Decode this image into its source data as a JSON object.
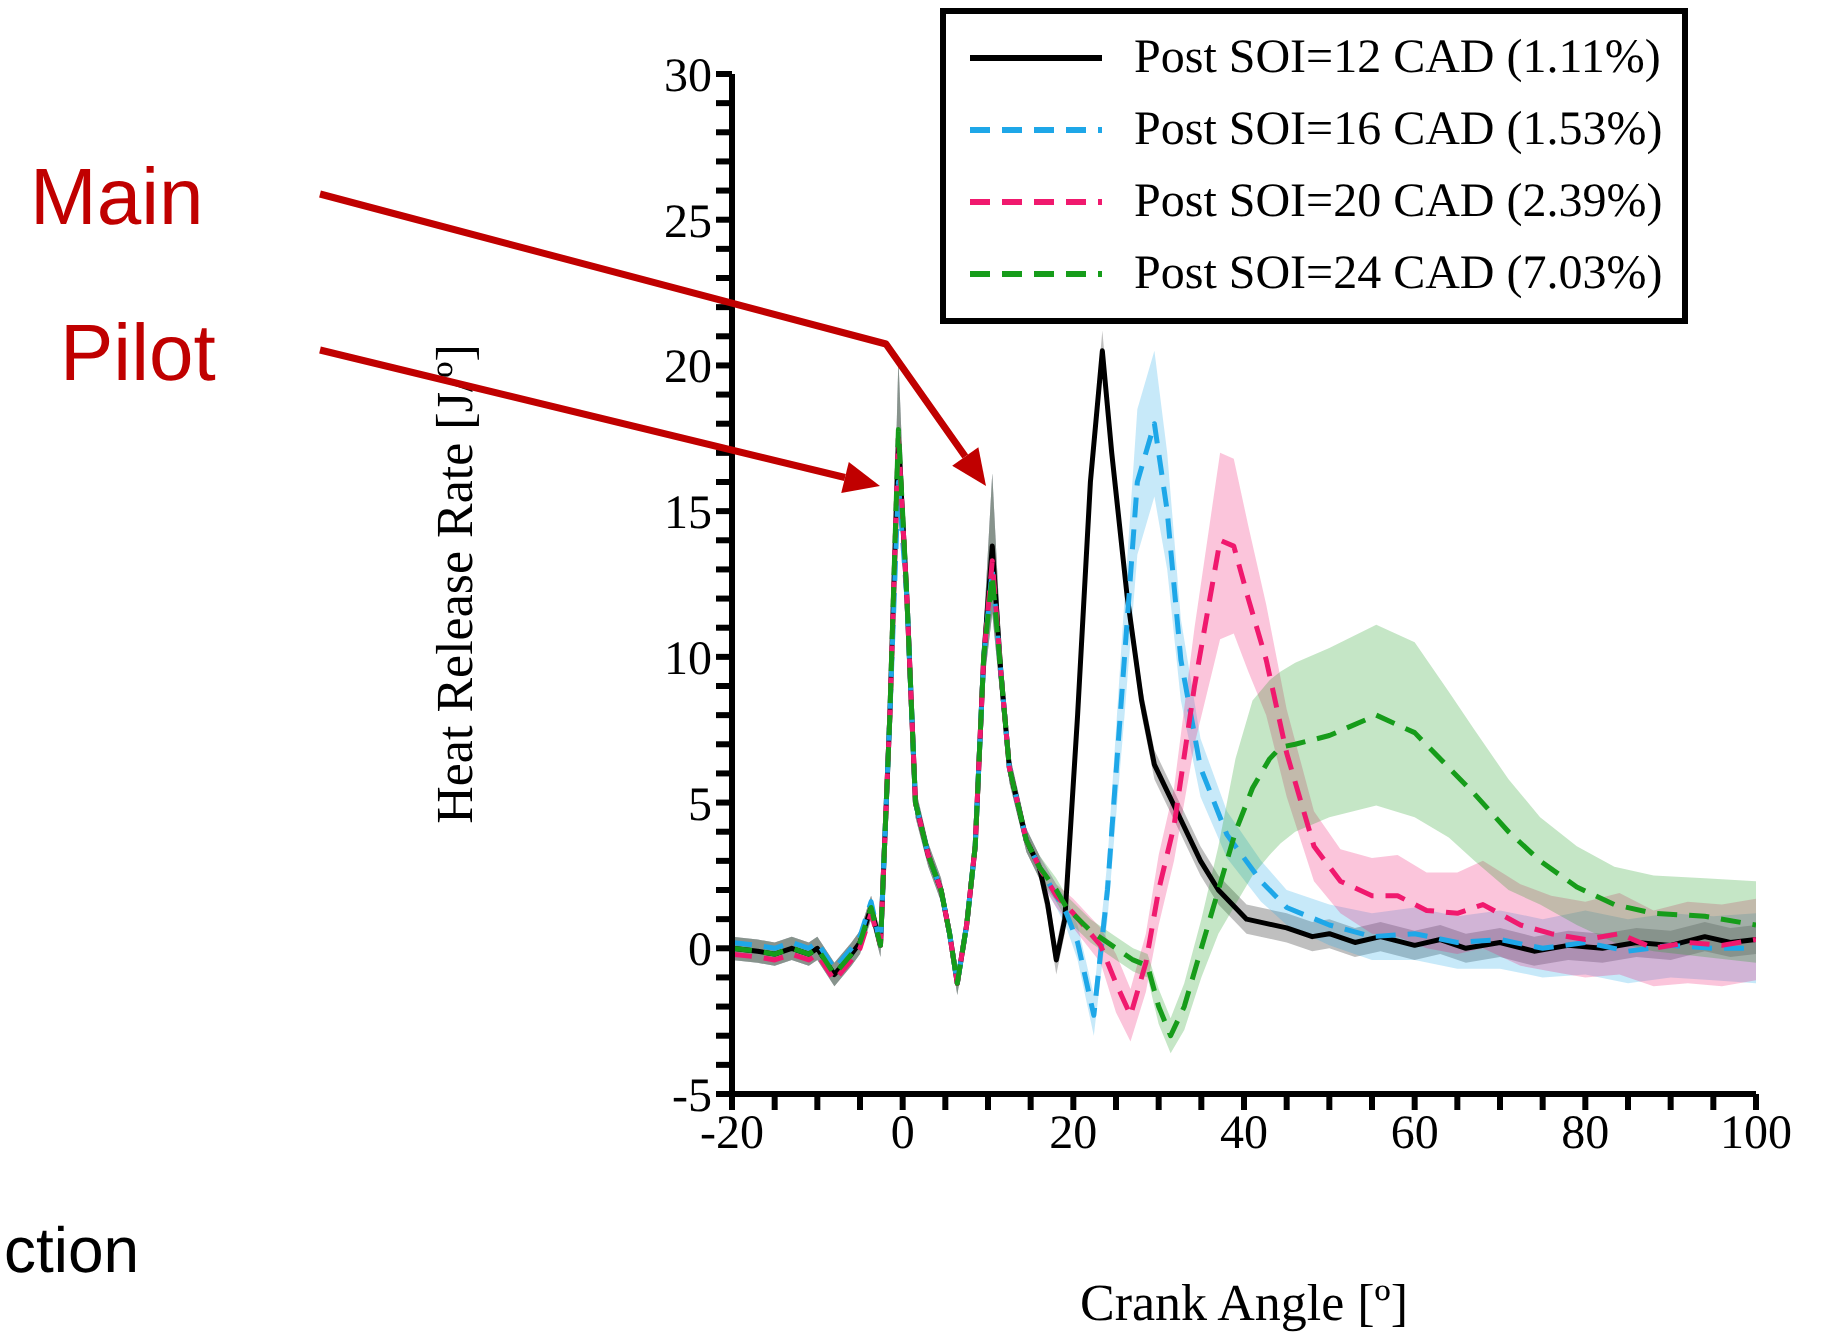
{
  "chart_data": {
    "type": "line",
    "xlabel": "Crank Angle [º]",
    "ylabel": "Heat Release Rate [J/º]",
    "xlim": [
      -20,
      100
    ],
    "ylim": [
      -5,
      30
    ],
    "xticks": [
      -20,
      {
        "value": -15,
        "label": null
      },
      {
        "value": -10,
        "label": null
      },
      {
        "value": -5,
        "label": null
      },
      0,
      {
        "value": 5,
        "label": null
      },
      {
        "value": 10,
        "label": null
      },
      {
        "value": 15,
        "label": null
      },
      20,
      {
        "value": 25,
        "label": null
      },
      {
        "value": 30,
        "label": null
      },
      {
        "value": 35,
        "label": null
      },
      40,
      {
        "value": 45,
        "label": null
      },
      {
        "value": 50,
        "label": null
      },
      {
        "value": 55,
        "label": null
      },
      60,
      {
        "value": 65,
        "label": null
      },
      {
        "value": 70,
        "label": null
      },
      {
        "value": 75,
        "label": null
      },
      80,
      {
        "value": 85,
        "label": null
      },
      {
        "value": 90,
        "label": null
      },
      {
        "value": 95,
        "label": null
      },
      100
    ],
    "yticks": [
      -5,
      {
        "value": -4,
        "label": null
      },
      {
        "value": -3,
        "label": null
      },
      {
        "value": -2,
        "label": null
      },
      {
        "value": -1,
        "label": null
      },
      0,
      {
        "value": 1,
        "label": null
      },
      {
        "value": 2,
        "label": null
      },
      {
        "value": 3,
        "label": null
      },
      {
        "value": 4,
        "label": null
      },
      5,
      {
        "value": 6,
        "label": null
      },
      {
        "value": 7,
        "label": null
      },
      {
        "value": 8,
        "label": null
      },
      {
        "value": 9,
        "label": null
      },
      10,
      {
        "value": 11,
        "label": null
      },
      {
        "value": 12,
        "label": null
      },
      {
        "value": 13,
        "label": null
      },
      {
        "value": 14,
        "label": null
      },
      15,
      {
        "value": 16,
        "label": null
      },
      {
        "value": 17,
        "label": null
      },
      {
        "value": 18,
        "label": null
      },
      {
        "value": 19,
        "label": null
      },
      20,
      {
        "value": 21,
        "label": null
      },
      {
        "value": 22,
        "label": null
      },
      {
        "value": 23,
        "label": null
      },
      {
        "value": 24,
        "label": null
      },
      25,
      {
        "value": 26,
        "label": null
      },
      {
        "value": 27,
        "label": null
      },
      {
        "value": 28,
        "label": null
      },
      {
        "value": 29,
        "label": null
      },
      30
    ],
    "legend": "top right",
    "series": [
      {
        "name": "Post SOI=12 CAD (1.11%)",
        "color": "#000000",
        "line_style": "solid",
        "x": [
          -20,
          -17,
          -15,
          -13,
          -11,
          -10,
          -8,
          -6,
          -5,
          -3.7,
          -2.6,
          -1.5,
          -0.5,
          0.5,
          1.5,
          3,
          4.5,
          5.5,
          6.4,
          7.5,
          8.5,
          9.5,
          10.5,
          11.5,
          12.5,
          14.5,
          16,
          17,
          18,
          19,
          20.5,
          22,
          23.4,
          24.5,
          26.3,
          28,
          29.5,
          31.8,
          34.9,
          37,
          40.3,
          45,
          48,
          50,
          53,
          56,
          60,
          63,
          66,
          70,
          74,
          78,
          82,
          86,
          90,
          94,
          97,
          100
        ],
        "values": [
          0,
          -0.1,
          -0.2,
          0,
          -0.2,
          0,
          -0.9,
          -0.2,
          0.2,
          1.4,
          0.1,
          8,
          17.5,
          12,
          5,
          3.2,
          2,
          0.5,
          -1.2,
          0.8,
          3.5,
          10,
          13.8,
          9.5,
          6.2,
          3.7,
          2.8,
          1.5,
          -0.4,
          1,
          8,
          16,
          20.5,
          17,
          12.1,
          8.5,
          6.3,
          4.9,
          3,
          2,
          1,
          0.7,
          0.4,
          0.5,
          0.2,
          0.4,
          0.1,
          0.3,
          0,
          0.2,
          -0.1,
          0.1,
          0,
          0.2,
          0.1,
          0.4,
          0.2,
          0.3
        ],
        "lower": [
          -0.4,
          -0.5,
          -0.6,
          -0.4,
          -0.6,
          -0.4,
          -1.3,
          -0.6,
          -0.2,
          1,
          -0.3,
          7,
          15.5,
          11,
          4.5,
          2.8,
          1.6,
          0.1,
          -1.6,
          0.4,
          3,
          9,
          11.5,
          8.5,
          5.7,
          3.3,
          2.4,
          1,
          -0.9,
          0.5,
          7.5,
          15.5,
          19.9,
          16.5,
          11.6,
          8,
          5.8,
          4.4,
          2.5,
          1.5,
          0.5,
          0.2,
          -0.1,
          0,
          -0.3,
          -0.1,
          -0.4,
          -0.2,
          -0.5,
          -0.3,
          -0.6,
          -0.4,
          -0.5,
          -0.3,
          -0.4,
          -0.1,
          -0.3,
          -0.2
        ],
        "upper": [
          0.4,
          0.3,
          0.2,
          0.4,
          0.2,
          0.4,
          -0.5,
          0.2,
          0.6,
          1.8,
          0.5,
          9,
          20.2,
          13,
          5.5,
          3.6,
          2.4,
          0.9,
          -0.8,
          1.2,
          4,
          11,
          16.3,
          10.5,
          6.7,
          4.1,
          3.2,
          2,
          0.1,
          1.5,
          8.5,
          16.5,
          21.2,
          17.5,
          12.6,
          9,
          6.8,
          5.4,
          3.5,
          2.5,
          1.5,
          1.2,
          0.9,
          1,
          0.7,
          0.9,
          0.6,
          0.8,
          0.5,
          0.7,
          0.4,
          0.6,
          0.5,
          0.7,
          0.6,
          0.9,
          0.7,
          0.8
        ]
      },
      {
        "name": "Post SOI=16 CAD (1.53%)",
        "color": "#1ea7e8",
        "line_style": "dashed",
        "x": [
          -20,
          -17,
          -15,
          -13,
          -11,
          -10,
          -8,
          -6,
          -5,
          -3.7,
          -2.6,
          -1.5,
          -0.5,
          0.5,
          1.5,
          3,
          4.5,
          5.5,
          6.4,
          7.5,
          8.5,
          9.5,
          10.5,
          11.5,
          12.5,
          14.5,
          16,
          18,
          19.2,
          20.5,
          22.4,
          24,
          26,
          27.5,
          29.5,
          31,
          32.6,
          34.9,
          38,
          42,
          45,
          50,
          55,
          60,
          65,
          70,
          75,
          80,
          85,
          90,
          95,
          100
        ],
        "values": [
          0.2,
          0.1,
          0,
          0.2,
          0,
          0.2,
          -0.7,
          0,
          0.4,
          1.6,
          0.1,
          8,
          16,
          12,
          5,
          3.2,
          2,
          0.5,
          -1.2,
          0.8,
          3.5,
          10,
          13,
          9.5,
          6.2,
          3.7,
          2.8,
          1.8,
          1.2,
          0.2,
          -2.3,
          2,
          10,
          16,
          18,
          15,
          9.9,
          6.2,
          3.9,
          2.3,
          1.4,
          0.8,
          0.4,
          0.5,
          0.2,
          0.3,
          0,
          0.2,
          -0.1,
          0.1,
          0,
          0
        ],
        "lower": [
          -0.4,
          -0.5,
          -0.6,
          -0.4,
          -0.6,
          -0.4,
          -1.3,
          -0.6,
          -0.2,
          1,
          -0.3,
          7,
          15.5,
          11,
          4.5,
          2.8,
          1.6,
          0.1,
          -1.6,
          0.4,
          3,
          9,
          11.5,
          8.5,
          5.7,
          3.3,
          2.4,
          1.4,
          0.7,
          -0.4,
          -3,
          1,
          8,
          13.5,
          15.5,
          13,
          8.5,
          5.2,
          3.1,
          1.6,
          0.8,
          0.1,
          -0.4,
          -0.4,
          -0.7,
          -0.7,
          -1,
          -0.9,
          -1.2,
          -1,
          -1.1,
          -1.2
        ],
        "upper": [
          0.4,
          0.3,
          0.2,
          0.4,
          0.2,
          0.4,
          -0.5,
          0.2,
          0.6,
          1.8,
          0.5,
          9,
          20.2,
          13,
          5.5,
          3.6,
          2.4,
          0.9,
          -0.8,
          1.2,
          4,
          11,
          16.3,
          10.5,
          6.7,
          4.1,
          3.2,
          2.2,
          1.7,
          0.8,
          -1.6,
          3,
          12,
          18.5,
          20.5,
          17,
          11.3,
          7.2,
          4.7,
          3,
          2,
          1.5,
          1.2,
          1.4,
          1.1,
          1.3,
          1,
          1.3,
          1,
          1.2,
          1.1,
          1.2
        ]
      },
      {
        "name": "Post SOI=20 CAD (2.39%)",
        "color": "#f0196e",
        "line_style": "dashed",
        "x": [
          -20,
          -17,
          -15,
          -13,
          -11,
          -10,
          -8,
          -6,
          -5,
          -3.7,
          -2.6,
          -1.5,
          -0.5,
          0.5,
          1.5,
          3,
          4.5,
          5.5,
          6.4,
          7.5,
          8.5,
          9.5,
          10.5,
          11.5,
          12.5,
          14.5,
          16,
          18,
          20,
          23.2,
          25,
          26.7,
          28.5,
          30,
          31.8,
          34.2,
          37.2,
          38.8,
          40.5,
          42.6,
          45,
          48.2,
          51.3,
          55,
          58,
          61.4,
          65,
          68,
          72.4,
          76,
          80,
          84,
          88,
          92,
          96,
          100
        ],
        "values": [
          -0.2,
          -0.3,
          -0.4,
          -0.2,
          -0.4,
          -0.2,
          -1.1,
          -0.4,
          0,
          1.2,
          0.1,
          8,
          17.5,
          12,
          5,
          3.2,
          2,
          0.5,
          -1.2,
          0.8,
          3.5,
          10,
          13.3,
          9.5,
          6.2,
          3.7,
          2.8,
          1.8,
          1.2,
          0.1,
          -1.2,
          -2.3,
          -0.5,
          2,
          4.2,
          9,
          14,
          13.8,
          12,
          9.9,
          6.7,
          3.5,
          2.3,
          1.8,
          1.8,
          1.3,
          1.2,
          1.5,
          0.8,
          0.5,
          0.3,
          0.5,
          0,
          0.2,
          0.1,
          0.3
        ],
        "lower": [
          -0.4,
          -0.5,
          -0.6,
          -0.4,
          -0.6,
          -0.4,
          -1.3,
          -0.6,
          -0.2,
          1,
          -0.3,
          7,
          15.5,
          11,
          4.5,
          2.8,
          1.6,
          0.1,
          -1.6,
          0.4,
          3,
          9,
          11.5,
          8.5,
          5.7,
          3.3,
          2.4,
          1.4,
          0.7,
          -0.5,
          -2.2,
          -3.2,
          -1.5,
          0.8,
          3,
          7,
          10.6,
          10.8,
          9.5,
          8,
          5.2,
          2.3,
          1.2,
          0.5,
          0.4,
          0,
          -0.2,
          0,
          -0.6,
          -0.8,
          -1,
          -0.9,
          -1.3,
          -1.2,
          -1.3,
          -1.1
        ],
        "upper": [
          0.4,
          0.3,
          0.2,
          0.4,
          0.2,
          0.4,
          -0.5,
          0.2,
          0.6,
          1.8,
          0.5,
          9,
          20.2,
          13,
          5.5,
          3.6,
          2.4,
          0.9,
          -0.8,
          1.2,
          4,
          11,
          16.3,
          10.5,
          6.7,
          4.1,
          3.2,
          2.2,
          1.7,
          0.7,
          -0.2,
          -1.4,
          0.5,
          3.2,
          5.5,
          11,
          17,
          16.8,
          14.5,
          11.8,
          8.2,
          4.7,
          3.4,
          3.1,
          3.2,
          2.6,
          2.6,
          3,
          2.2,
          1.8,
          1.6,
          1.9,
          1.3,
          1.6,
          1.5,
          1.7
        ]
      },
      {
        "name": "Post SOI=24 CAD (7.03%)",
        "color": "#169c1a",
        "line_style": "dashed",
        "x": [
          -20,
          -17,
          -15,
          -13,
          -11,
          -10,
          -8,
          -6,
          -5,
          -3.7,
          -2.6,
          -1.5,
          -0.5,
          0.5,
          1.5,
          3,
          4.5,
          5.5,
          6.4,
          7.5,
          8.5,
          9.5,
          10.5,
          11.5,
          12.5,
          14.5,
          16,
          18,
          19.2,
          22,
          25,
          27,
          28.7,
          30,
          31.4,
          33,
          35,
          37,
          39,
          41,
          43,
          44.3,
          46,
          50,
          55.5,
          60,
          64,
          67,
          71,
          74.7,
          79,
          83.4,
          88,
          94,
          100
        ],
        "values": [
          0,
          -0.1,
          -0.2,
          0,
          -0.2,
          0,
          -0.9,
          -0.2,
          0.2,
          1.4,
          0.1,
          8,
          17.8,
          12,
          5,
          3.2,
          2,
          0.5,
          -1.2,
          0.8,
          3.5,
          10,
          12.8,
          9.5,
          6.2,
          3.7,
          2.8,
          2,
          1.4,
          0.6,
          0,
          -0.4,
          -0.6,
          -2,
          -3,
          -2,
          0,
          2,
          4,
          5.5,
          6.5,
          6.9,
          7,
          7.3,
          8,
          7.4,
          6.2,
          5.3,
          4,
          3,
          2.1,
          1.5,
          1.2,
          1.1,
          0.8
        ],
        "lower": [
          -0.4,
          -0.5,
          -0.6,
          -0.4,
          -0.6,
          -0.4,
          -1.3,
          -0.6,
          -0.2,
          1,
          -0.3,
          7,
          15.5,
          11,
          4.5,
          2.8,
          1.6,
          0.1,
          -1.6,
          0.4,
          3,
          9,
          11.5,
          8.5,
          5.7,
          3.3,
          2.4,
          1.6,
          1,
          0.2,
          -0.4,
          -0.8,
          -1,
          -2.6,
          -3.6,
          -2.8,
          -1,
          0.5,
          1.5,
          2.5,
          3.2,
          3.6,
          4,
          4.5,
          4.9,
          4.5,
          3.8,
          3,
          2,
          1.5,
          0.8,
          0.2,
          -0.1,
          -0.3,
          -0.5
        ],
        "upper": [
          0.4,
          0.3,
          0.2,
          0.4,
          0.2,
          0.4,
          -0.5,
          0.2,
          0.6,
          1.8,
          0.5,
          9,
          20.2,
          13,
          5.5,
          3.6,
          2.4,
          0.9,
          -0.8,
          1.2,
          4,
          11,
          16.3,
          10.5,
          6.7,
          4.1,
          3.2,
          2.4,
          1.8,
          1,
          0.4,
          0,
          -0.2,
          -1.4,
          -2.4,
          -1.2,
          1,
          3.5,
          6.5,
          8.5,
          9.2,
          9.5,
          9.8,
          10.3,
          11.1,
          10.5,
          8.8,
          7.5,
          5.8,
          4.5,
          3.5,
          2.8,
          2.5,
          2.4,
          2.3
        ]
      }
    ],
    "annotations": [
      "Main",
      "Pilot",
      "ction"
    ]
  }
}
